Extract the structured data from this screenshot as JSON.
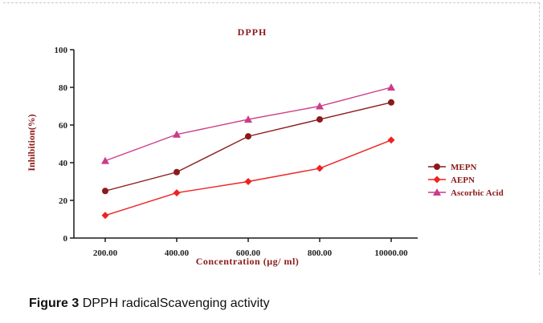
{
  "caption": {
    "label": "Figure 3",
    "text": "DPPH radicalScavenging activity"
  },
  "colors": {
    "axis": "#1a1a1a",
    "text": "#8b1a1a",
    "tick_text": "#222222"
  },
  "chart_data": {
    "type": "line",
    "title": "DPPH",
    "xlabel": "Concentration (µg/ ml)",
    "ylabel": "Inhibition(%)",
    "categories": [
      "200.00",
      "400.00",
      "600.00",
      "800.00",
      "10000.00"
    ],
    "ylim": [
      0,
      100
    ],
    "yticks": [
      0,
      20,
      40,
      60,
      80,
      100
    ],
    "grid": false,
    "legend_position": "right",
    "series": [
      {
        "name": "MEPN",
        "color": "#8b1a1a",
        "marker": "circle",
        "values": [
          25,
          35,
          54,
          63,
          72
        ]
      },
      {
        "name": "AEPN",
        "color": "#ee2222",
        "marker": "diamond",
        "values": [
          12,
          24,
          30,
          37,
          52
        ]
      },
      {
        "name": "Ascorbic Acid",
        "color": "#cc3b88",
        "marker": "triangle",
        "values": [
          41,
          55,
          63,
          70,
          80
        ]
      }
    ]
  }
}
